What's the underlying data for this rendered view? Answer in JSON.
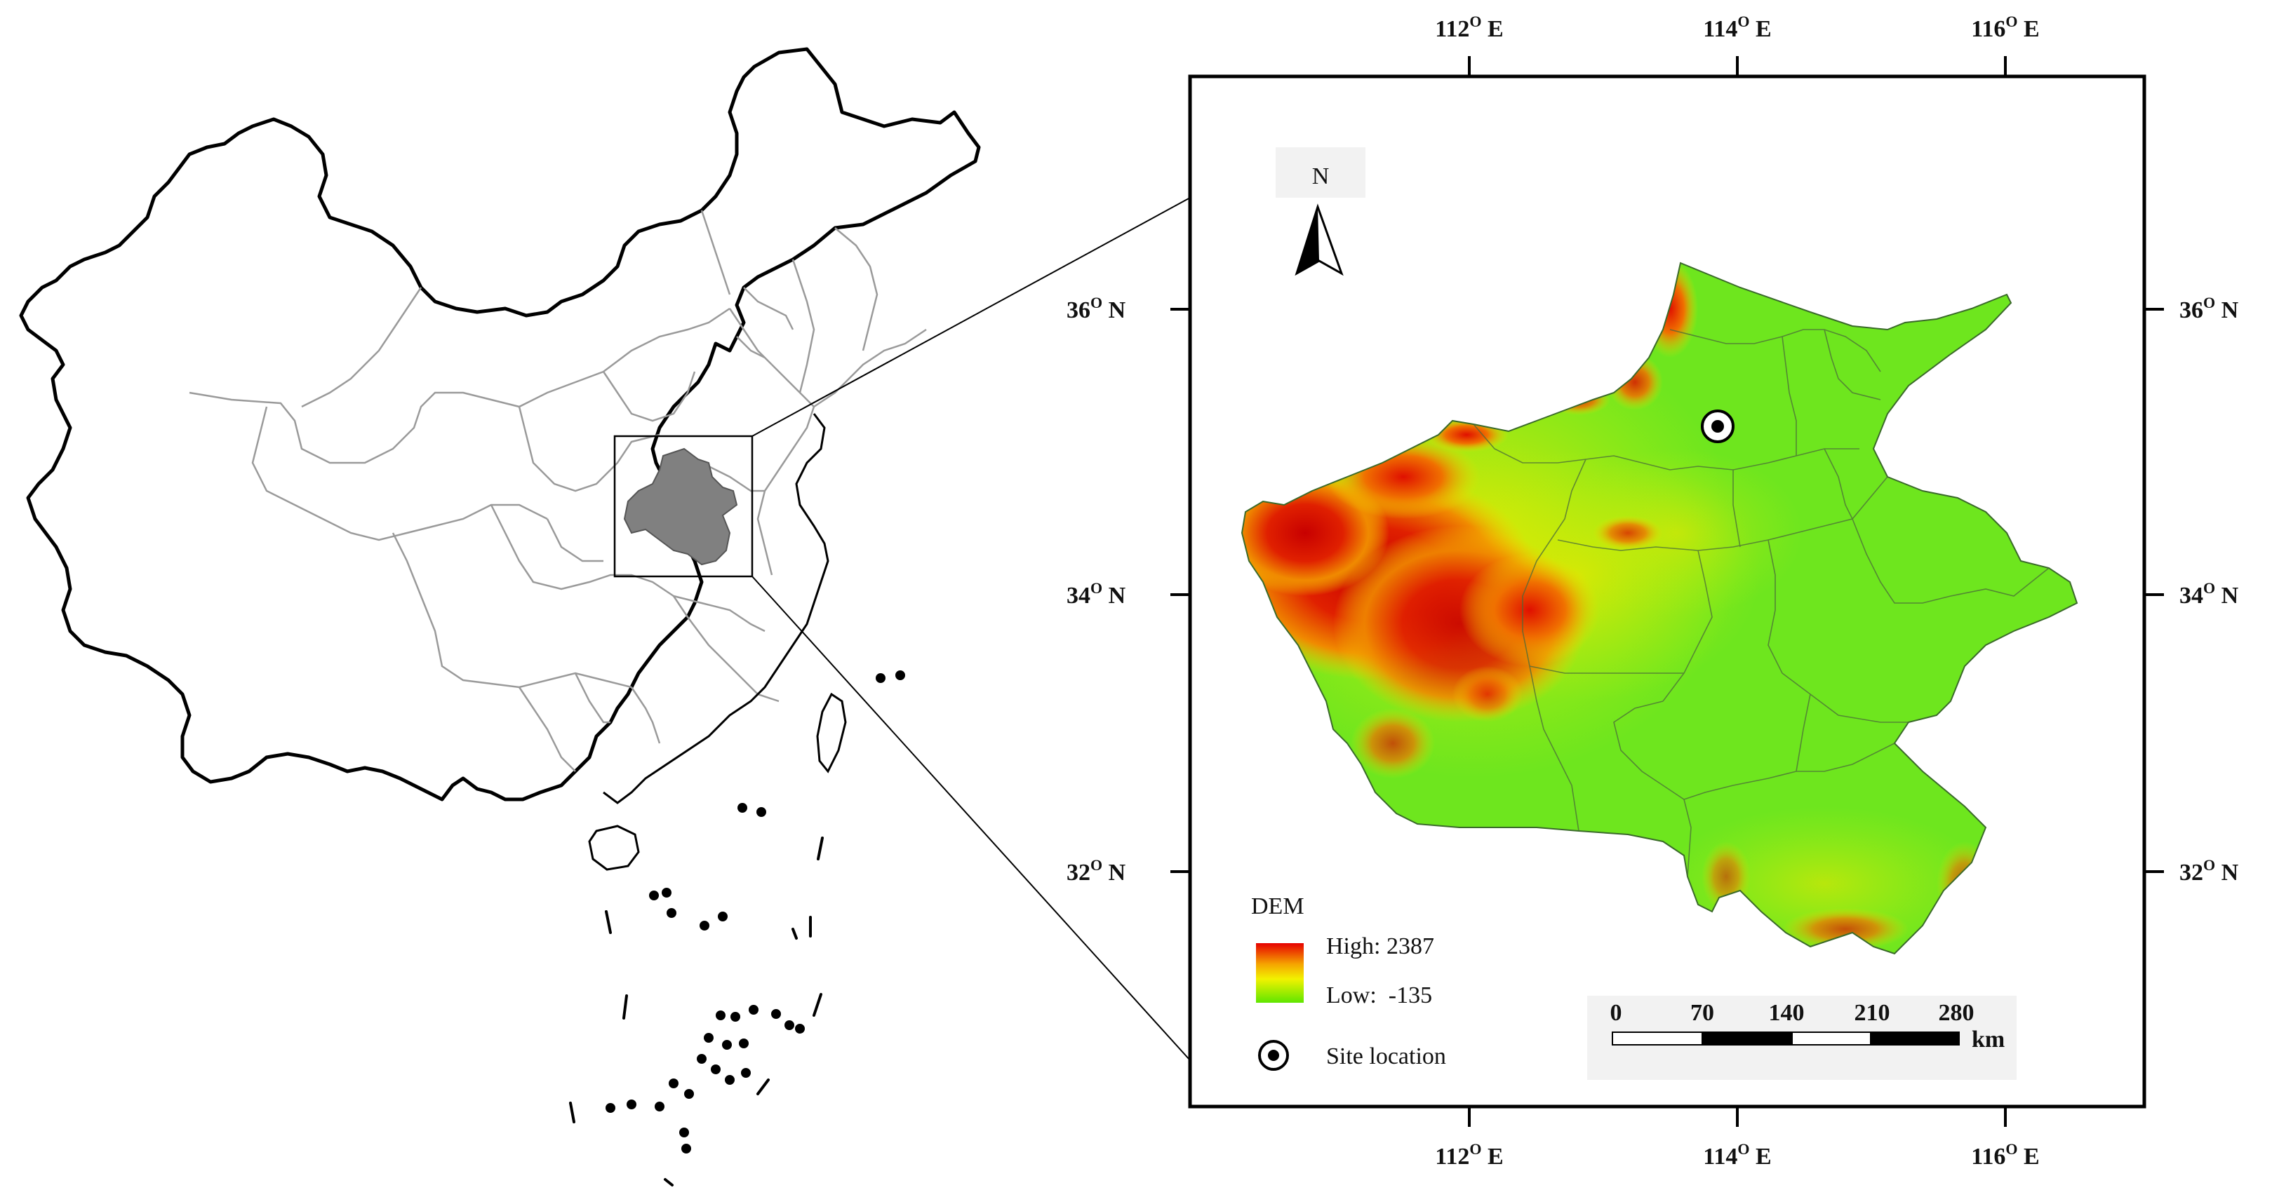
{
  "top_axis": [
    "112",
    "114",
    "116"
  ],
  "bottom_axis": [
    "112",
    "114",
    "116"
  ],
  "left_axis": [
    "36",
    "34",
    "32"
  ],
  "right_axis": [
    "36",
    "34",
    "32"
  ],
  "lon_suffix": " E",
  "lat_suffix": " N",
  "degree_symbol": "O",
  "north_arrow": {
    "label": "N"
  },
  "legend": {
    "title": "DEM",
    "high_label": "High: 2387",
    "low_label": "Low:  -135",
    "site_label": "Site location",
    "ramp_colors": [
      "#e60000",
      "#f5a300",
      "#f2f200",
      "#5fe600"
    ]
  },
  "scalebar": {
    "ticks": [
      "0",
      "70",
      "140",
      "210",
      "280"
    ],
    "unit": "km"
  },
  "colors": {
    "region_fill": "#808080",
    "dem_low": "#6ee61e",
    "dem_mid": "#e8e800",
    "dem_high": "#e00000"
  }
}
